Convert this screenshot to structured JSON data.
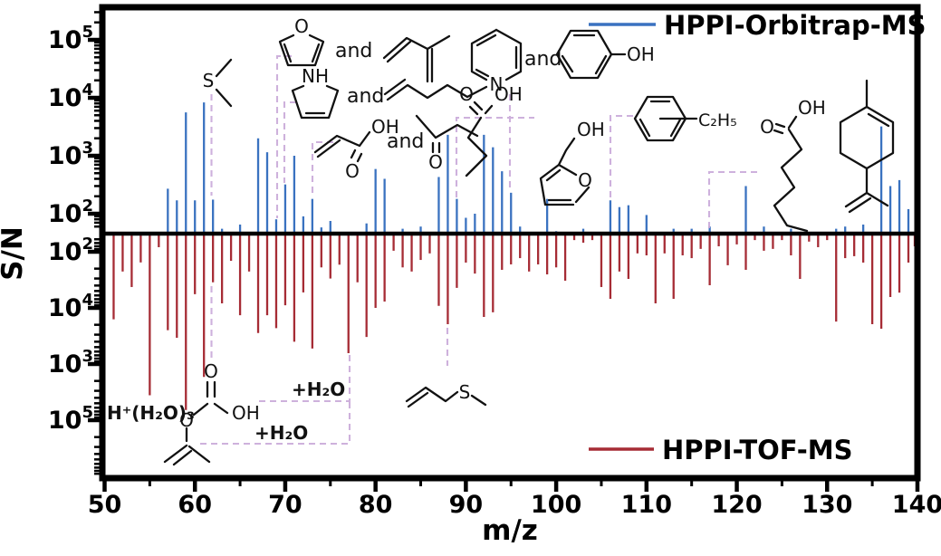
{
  "axis": {
    "x_label": "m/z",
    "y_label": "S/N",
    "x_ticks": [
      "50",
      "60",
      "70",
      "80",
      "90",
      "100",
      "110",
      "120",
      "130",
      "140"
    ],
    "y_top_ticks": [
      {
        "b": "10",
        "e": "5"
      },
      {
        "b": "10",
        "e": "4"
      },
      {
        "b": "10",
        "e": "3"
      },
      {
        "b": "10",
        "e": "2"
      }
    ],
    "y_bottom_ticks": [
      {
        "b": "10",
        "e": "2"
      },
      {
        "b": "10",
        "e": "4"
      },
      {
        "b": "10",
        "e": "3"
      },
      {
        "b": "10",
        "e": "5"
      }
    ]
  },
  "legend": {
    "top": {
      "label": "HPPI-Orbitrap-MS",
      "color": "#3a72c0"
    },
    "bottom": {
      "label": "HPPI-TOF-MS",
      "color": "#a62c35"
    }
  },
  "colors": {
    "blue": "#3a72c0",
    "red": "#a62c35",
    "dash": "#c9a9d9",
    "ink": "#111111"
  },
  "atom_labels": {
    "S": "S",
    "O": "O",
    "NH": "NH",
    "N": "N",
    "OH": "OH",
    "C2H5": "C₂H₅",
    "and": "and",
    "plus_h2o": "+H₂O",
    "proton_water_trimer": "H⁺(H₂O)₃"
  },
  "chart_data": {
    "type": "stick-mass-spectrum",
    "title": "",
    "xlabel": "m/z",
    "ylabel": "S/N",
    "x_range": [
      50,
      140
    ],
    "y_scale": "log",
    "legend_position": {
      "top_series": "top-right",
      "bottom_series": "bottom-right"
    },
    "grid": false,
    "series": [
      {
        "name": "HPPI-Orbitrap-MS",
        "color": "#3a72c0",
        "direction": "up",
        "peaks": [
          [
            57,
            270
          ],
          [
            58,
            170
          ],
          [
            59,
            5600
          ],
          [
            60,
            170
          ],
          [
            61,
            8300
          ],
          [
            62,
            175
          ],
          [
            63,
            55
          ],
          [
            65,
            65
          ],
          [
            67,
            2000
          ],
          [
            68,
            1150
          ],
          [
            69,
            80
          ],
          [
            70,
            320
          ],
          [
            71,
            1000
          ],
          [
            72,
            90
          ],
          [
            73,
            180
          ],
          [
            74,
            58
          ],
          [
            75,
            75
          ],
          [
            79,
            68
          ],
          [
            80,
            590
          ],
          [
            81,
            400
          ],
          [
            83,
            55
          ],
          [
            85,
            60
          ],
          [
            87,
            430
          ],
          [
            88,
            2300
          ],
          [
            89,
            180
          ],
          [
            90,
            85
          ],
          [
            91,
            100
          ],
          [
            92,
            2300
          ],
          [
            93,
            1400
          ],
          [
            94,
            540
          ],
          [
            95,
            230
          ],
          [
            96,
            60
          ],
          [
            99,
            180
          ],
          [
            100,
            50
          ],
          [
            103,
            55
          ],
          [
            106,
            170
          ],
          [
            107,
            130
          ],
          [
            108,
            140
          ],
          [
            110,
            95
          ],
          [
            113,
            55
          ],
          [
            115,
            55
          ],
          [
            117,
            60
          ],
          [
            121,
            300
          ],
          [
            123,
            60
          ],
          [
            126,
            55
          ],
          [
            131,
            55
          ],
          [
            132,
            60
          ],
          [
            134,
            65
          ],
          [
            136,
            3200
          ],
          [
            137,
            300
          ],
          [
            138,
            380
          ],
          [
            139,
            120
          ]
        ]
      },
      {
        "name": "HPPI-TOF-MS",
        "color": "#a62c35",
        "direction": "down",
        "peaks": [
          [
            51,
            1600
          ],
          [
            52,
            225
          ],
          [
            53,
            425
          ],
          [
            54,
            155
          ],
          [
            55,
            36000
          ],
          [
            56,
            83
          ],
          [
            57,
            2500
          ],
          [
            58,
            3400
          ],
          [
            59,
            66000
          ],
          [
            60,
            570
          ],
          [
            61,
            17000
          ],
          [
            62,
            350
          ],
          [
            63,
            830
          ],
          [
            64,
            145
          ],
          [
            65,
            1350
          ],
          [
            66,
            225
          ],
          [
            67,
            2800
          ],
          [
            68,
            1350
          ],
          [
            69,
            2300
          ],
          [
            70,
            900
          ],
          [
            71,
            4000
          ],
          [
            72,
            530
          ],
          [
            73,
            5300
          ],
          [
            74,
            190
          ],
          [
            75,
            300
          ],
          [
            76,
            170
          ],
          [
            77,
            6400
          ],
          [
            78,
            350
          ],
          [
            79,
            3300
          ],
          [
            80,
            1000
          ],
          [
            81,
            770
          ],
          [
            82,
            96
          ],
          [
            83,
            190
          ],
          [
            84,
            225
          ],
          [
            85,
            140
          ],
          [
            86,
            107
          ],
          [
            87,
            920
          ],
          [
            88,
            1950
          ],
          [
            89,
            440
          ],
          [
            90,
            156
          ],
          [
            91,
            245
          ],
          [
            92,
            1450
          ],
          [
            93,
            1200
          ],
          [
            94,
            210
          ],
          [
            95,
            168
          ],
          [
            96,
            130
          ],
          [
            97,
            225
          ],
          [
            98,
            168
          ],
          [
            99,
            253
          ],
          [
            100,
            190
          ],
          [
            101,
            328
          ],
          [
            102,
            62
          ],
          [
            103,
            69
          ],
          [
            104,
            62
          ],
          [
            105,
            425
          ],
          [
            106,
            690
          ],
          [
            107,
            225
          ],
          [
            108,
            305
          ],
          [
            109,
            107
          ],
          [
            110,
            116
          ],
          [
            111,
            830
          ],
          [
            112,
            107
          ],
          [
            113,
            690
          ],
          [
            114,
            116
          ],
          [
            115,
            130
          ],
          [
            116,
            89
          ],
          [
            117,
            395
          ],
          [
            118,
            80
          ],
          [
            119,
            174
          ],
          [
            120,
            74
          ],
          [
            121,
            210
          ],
          [
            122,
            62
          ],
          [
            123,
            96
          ],
          [
            124,
            89
          ],
          [
            125,
            62
          ],
          [
            126,
            116
          ],
          [
            127,
            305
          ],
          [
            128,
            66
          ],
          [
            129,
            83
          ],
          [
            130,
            62
          ],
          [
            131,
            1750
          ],
          [
            132,
            130
          ],
          [
            133,
            120
          ],
          [
            134,
            156
          ],
          [
            135,
            1950
          ],
          [
            136,
            2350
          ],
          [
            137,
            640
          ],
          [
            138,
            535
          ],
          [
            139,
            156
          ],
          [
            140,
            80
          ]
        ]
      }
    ],
    "annotated_species": [
      "dimethyl sulfide",
      "furan and isoprene",
      "pyrroline and hexene",
      "acrylic acid and butanone",
      "pyridine and phenol",
      "butyric acid",
      "furfuryl alcohol",
      "ethylbenzene",
      "hexanoic acid",
      "limonene",
      "allyl methyl sulfide",
      "protonated water cluster / carbonic species with +H2O steps"
    ]
  }
}
